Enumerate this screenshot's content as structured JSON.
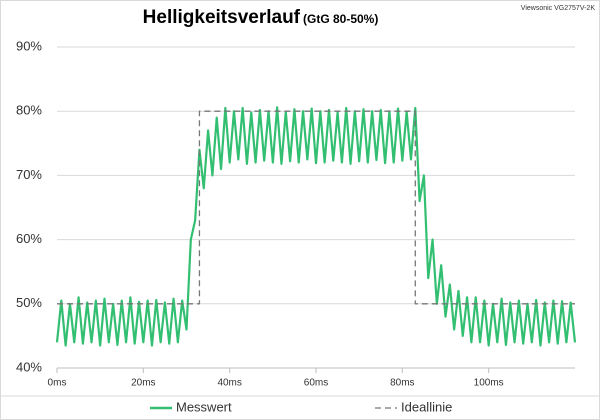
{
  "chart_data": {
    "type": "line",
    "title": "Helligkeitsverlauf",
    "subtitle": "(GtG 80-50%)",
    "annotation": "Viewsonic VG2757V-2K",
    "xlim": [
      0,
      120
    ],
    "xticks": [
      {
        "value": 0,
        "label": "0ms"
      },
      {
        "value": 20,
        "label": "20ms"
      },
      {
        "value": 40,
        "label": "40ms"
      },
      {
        "value": 60,
        "label": "60ms"
      },
      {
        "value": 80,
        "label": "80ms"
      },
      {
        "value": 100,
        "label": "100ms"
      }
    ],
    "ylim": [
      40,
      90
    ],
    "yticks": [
      {
        "value": 40,
        "label": "40%"
      },
      {
        "value": 50,
        "label": "50%"
      },
      {
        "value": 60,
        "label": "60%"
      },
      {
        "value": 70,
        "label": "70%"
      },
      {
        "value": 80,
        "label": "80%"
      },
      {
        "value": 90,
        "label": "90%"
      }
    ],
    "grid": true,
    "legend": "bottom",
    "series": [
      {
        "name": "Messwert",
        "color": "#33bf72",
        "dash": false,
        "x": [
          0,
          1,
          2,
          3,
          4,
          5,
          6,
          7,
          8,
          9,
          10,
          11,
          12,
          13,
          14,
          15,
          16,
          17,
          18,
          19,
          20,
          21,
          22,
          23,
          24,
          25,
          26,
          27,
          28,
          29,
          30,
          31,
          32,
          33,
          34,
          35,
          36,
          37,
          38,
          39,
          40,
          41,
          42,
          43,
          44,
          45,
          46,
          47,
          48,
          49,
          50,
          51,
          52,
          53,
          54,
          55,
          56,
          57,
          58,
          59,
          60,
          61,
          62,
          63,
          64,
          65,
          66,
          67,
          68,
          69,
          70,
          71,
          72,
          73,
          74,
          75,
          76,
          77,
          78,
          79,
          80,
          81,
          82,
          83,
          84,
          85,
          86,
          87,
          88,
          89,
          90,
          91,
          92,
          93,
          94,
          95,
          96,
          97,
          98,
          99,
          100,
          101,
          102,
          103,
          104,
          105,
          106,
          107,
          108,
          109,
          110,
          111,
          112,
          113,
          114,
          115,
          116,
          117,
          118,
          119,
          120
        ],
        "values": [
          44,
          50.5,
          43.5,
          50,
          44,
          51,
          43.8,
          50.2,
          44,
          50.5,
          43.5,
          50.8,
          44,
          50,
          43.6,
          50.5,
          44,
          51,
          43.8,
          50.3,
          44,
          50.5,
          43.5,
          50.6,
          44,
          50.2,
          43.8,
          50.8,
          44,
          50.5,
          46,
          60,
          63,
          74,
          68,
          77,
          70,
          79,
          71,
          80.5,
          72,
          80,
          72.5,
          80.5,
          71.8,
          79.8,
          72,
          80.2,
          72.3,
          80,
          72,
          80.6,
          71.8,
          79.9,
          72.2,
          80.3,
          72,
          80,
          72.5,
          80.4,
          71.9,
          80,
          72,
          80.2,
          72.3,
          79.8,
          72,
          80.5,
          71.8,
          80,
          72.2,
          80.3,
          72,
          80,
          72.4,
          80.2,
          71.9,
          80,
          72,
          80.4,
          72.3,
          79.9,
          72.5,
          80.5,
          66,
          70,
          54,
          60,
          50,
          56,
          48,
          53,
          46,
          52,
          45,
          51,
          44,
          51,
          44,
          50.5,
          43.5,
          50,
          44,
          50.8,
          43.6,
          50.2,
          44,
          50.5,
          43.8,
          50,
          44,
          50.6,
          43.5,
          50.2,
          44,
          50.5,
          43.8,
          50.4,
          44,
          50.2,
          44
        ]
      },
      {
        "name": "Ideallinie",
        "color": "#777777",
        "dash": true,
        "x": [
          0,
          33,
          33,
          83,
          83,
          120
        ],
        "values": [
          50,
          50,
          80,
          80,
          50,
          50
        ]
      }
    ]
  }
}
